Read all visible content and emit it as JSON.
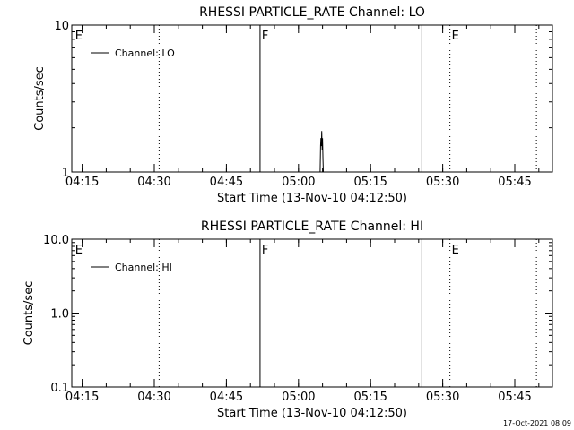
{
  "chart_data": [
    {
      "type": "line",
      "title": "RHESSI PARTICLE_RATE Channel: LO",
      "xlabel": "Start Time (13-Nov-10 04:12:50)",
      "ylabel": "Counts/sec",
      "y_scale": "log",
      "ylim": [
        1,
        10
      ],
      "y_ticks": [
        1,
        10
      ],
      "y_tick_labels": [
        "1",
        "10"
      ],
      "x_range": [
        "04:12:50",
        "05:52:50"
      ],
      "x_ticks": [
        "04:15",
        "04:30",
        "04:45",
        "05:00",
        "05:15",
        "05:30",
        "05:45"
      ],
      "legend": {
        "position": "top-left",
        "entries": [
          "Channel: LO"
        ]
      },
      "series": [
        {
          "name": "Channel: LO",
          "points": [
            [
              "05:04:30",
              1.0
            ],
            [
              "05:04:35",
              1.5
            ],
            [
              "05:04:40",
              1.7
            ],
            [
              "05:04:45",
              1.5
            ],
            [
              "05:04:50",
              1.9
            ],
            [
              "05:04:55",
              1.4
            ],
            [
              "05:05:00",
              1.7
            ],
            [
              "05:05:05",
              1.2
            ],
            [
              "05:05:10",
              1.0
            ]
          ]
        }
      ],
      "markers": [
        {
          "time": "04:13:10",
          "label": "E",
          "style": "none"
        },
        {
          "time": "04:31:00",
          "label": "",
          "style": "dotted"
        },
        {
          "time": "04:52:00",
          "label": "F",
          "style": "solid"
        },
        {
          "time": "05:25:40",
          "label": "",
          "style": "solid"
        },
        {
          "time": "05:31:30",
          "label": "E",
          "style": "dotted"
        },
        {
          "time": "05:49:30",
          "label": "",
          "style": "dotted"
        }
      ]
    },
    {
      "type": "line",
      "title": "RHESSI PARTICLE_RATE Channel: HI",
      "xlabel": "Start Time (13-Nov-10 04:12:50)",
      "ylabel": "Counts/sec",
      "y_scale": "log",
      "ylim": [
        0.1,
        10
      ],
      "y_ticks": [
        0.1,
        1,
        10
      ],
      "y_tick_labels": [
        "0.1",
        "1.0",
        "10.0"
      ],
      "x_range": [
        "04:12:50",
        "05:52:50"
      ],
      "x_ticks": [
        "04:15",
        "04:30",
        "04:45",
        "05:00",
        "05:15",
        "05:30",
        "05:45"
      ],
      "legend": {
        "position": "top-left",
        "entries": [
          "Channel: HI"
        ]
      },
      "series": [
        {
          "name": "Channel: HI",
          "points": []
        }
      ],
      "markers": [
        {
          "time": "04:13:10",
          "label": "E",
          "style": "none"
        },
        {
          "time": "04:31:00",
          "label": "",
          "style": "dotted"
        },
        {
          "time": "04:52:00",
          "label": "F",
          "style": "solid"
        },
        {
          "time": "05:25:40",
          "label": "",
          "style": "solid"
        },
        {
          "time": "05:31:30",
          "label": "E",
          "style": "dotted"
        },
        {
          "time": "05:49:30",
          "label": "",
          "style": "dotted"
        }
      ]
    }
  ],
  "footer": {
    "timestamp": "17-Oct-2021 08:09"
  }
}
